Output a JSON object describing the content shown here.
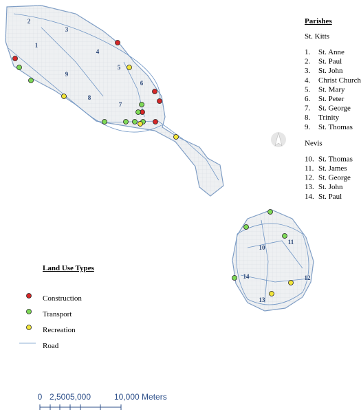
{
  "map_labels": [
    "2",
    "3",
    "1",
    "4",
    "5",
    "9",
    "8",
    "6",
    "7",
    "10",
    "11",
    "14",
    "12",
    "13"
  ],
  "parishes": {
    "title": "Parishes",
    "groups": [
      {
        "name": "St. Kitts",
        "items": [
          {
            "number": "1.",
            "name": "St. Anne"
          },
          {
            "number": "2.",
            "name": "St. Paul"
          },
          {
            "number": "3.",
            "name": "St. John"
          },
          {
            "number": "4.",
            "name": "Christ Church"
          },
          {
            "number": "5.",
            "name": "St. Mary"
          },
          {
            "number": "6.",
            "name": "St. Peter"
          },
          {
            "number": "7.",
            "name": "St. George"
          },
          {
            "number": "8.",
            "name": "Trinity"
          },
          {
            "number": "9.",
            "name": "St. Thomas"
          }
        ]
      },
      {
        "name": "Nevis",
        "items": [
          {
            "number": "10.",
            "name": "St. Thomas"
          },
          {
            "number": "11.",
            "name": "St. James"
          },
          {
            "number": "12.",
            "name": "St. George"
          },
          {
            "number": "13.",
            "name": "St. John"
          },
          {
            "number": "14.",
            "name": "St. Paul"
          }
        ]
      }
    ]
  },
  "legend": {
    "title": "Land Use Types",
    "items": [
      "Construction",
      "Transport",
      "Recreation",
      "Road"
    ]
  },
  "scale_bar": {
    "labels": [
      "0",
      "2,500",
      "5,000",
      "10,000 Meters"
    ]
  }
}
